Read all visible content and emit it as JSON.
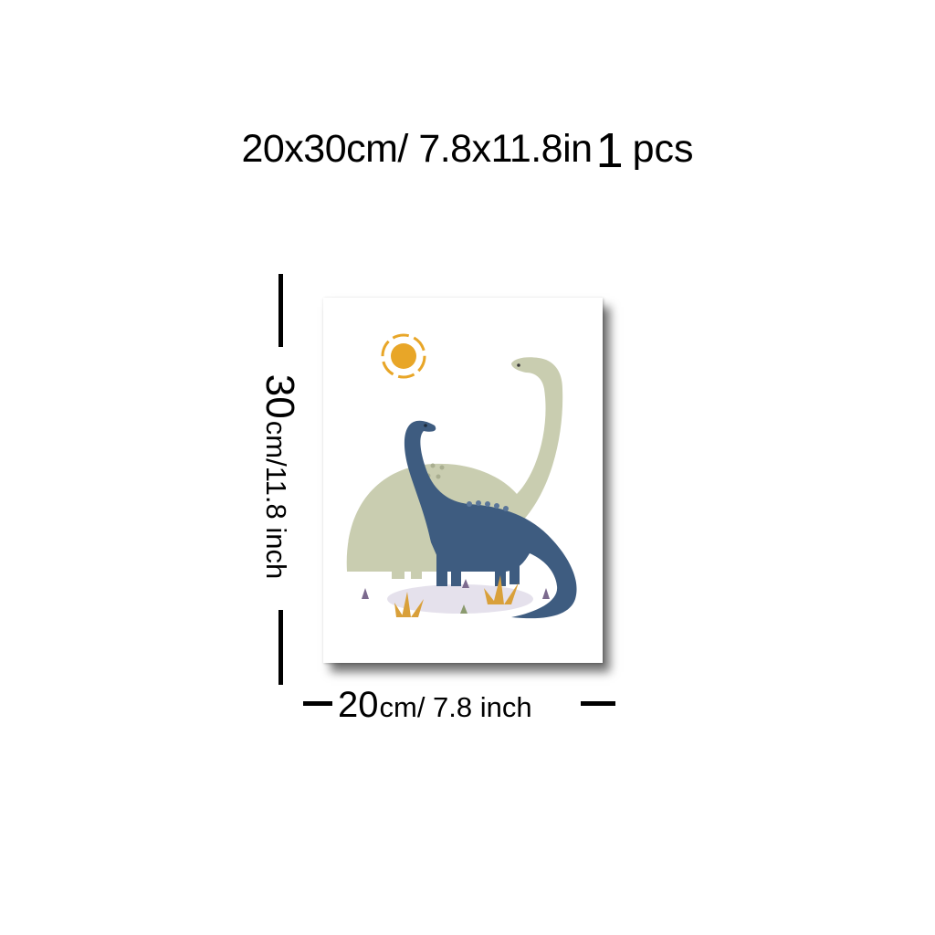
{
  "headline": {
    "size_text": "20x30cm/ 7.8x11.8in",
    "quantity": "1",
    "unit": "pcs"
  },
  "height_dimension": {
    "value": "30",
    "unit_text": "cm/11.8 inch"
  },
  "width_dimension": {
    "value": "20",
    "unit_text": "cm/ 7.8 inch"
  },
  "artwork": {
    "subject": "two dinosaurs with sun",
    "colors": {
      "sun": "#E8A628",
      "big_dino": "#C9CDB0",
      "small_dino": "#3E5C80",
      "ground": "#E5E1EC",
      "grass": "#D9A03A",
      "sprout": "#7C6A8E"
    }
  }
}
